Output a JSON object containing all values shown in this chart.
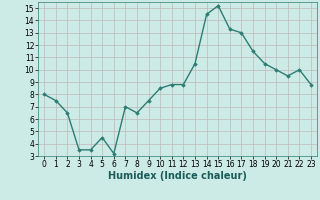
{
  "x": [
    0,
    1,
    2,
    3,
    4,
    5,
    6,
    7,
    8,
    9,
    10,
    11,
    12,
    13,
    14,
    15,
    16,
    17,
    18,
    19,
    20,
    21,
    22,
    23
  ],
  "y": [
    8.0,
    7.5,
    6.5,
    3.5,
    3.5,
    4.5,
    3.2,
    7.0,
    6.5,
    7.5,
    8.5,
    8.8,
    8.8,
    10.5,
    14.5,
    15.2,
    13.3,
    13.0,
    11.5,
    10.5,
    10.0,
    9.5,
    10.0,
    8.8
  ],
  "line_color": "#2d7d74",
  "marker": "D",
  "marker_size": 1.8,
  "linewidth": 1.0,
  "xlabel": "Humidex (Indice chaleur)",
  "xlim": [
    -0.5,
    23.5
  ],
  "ylim": [
    3,
    15.5
  ],
  "yticks": [
    3,
    4,
    5,
    6,
    7,
    8,
    9,
    10,
    11,
    12,
    13,
    14,
    15
  ],
  "xticks": [
    0,
    1,
    2,
    3,
    4,
    5,
    6,
    7,
    8,
    9,
    10,
    11,
    12,
    13,
    14,
    15,
    16,
    17,
    18,
    19,
    20,
    21,
    22,
    23
  ],
  "bg_color": "#cceae6",
  "grid_color": "#c0b8b8",
  "tick_fontsize": 5.5,
  "xlabel_fontsize": 7.0
}
